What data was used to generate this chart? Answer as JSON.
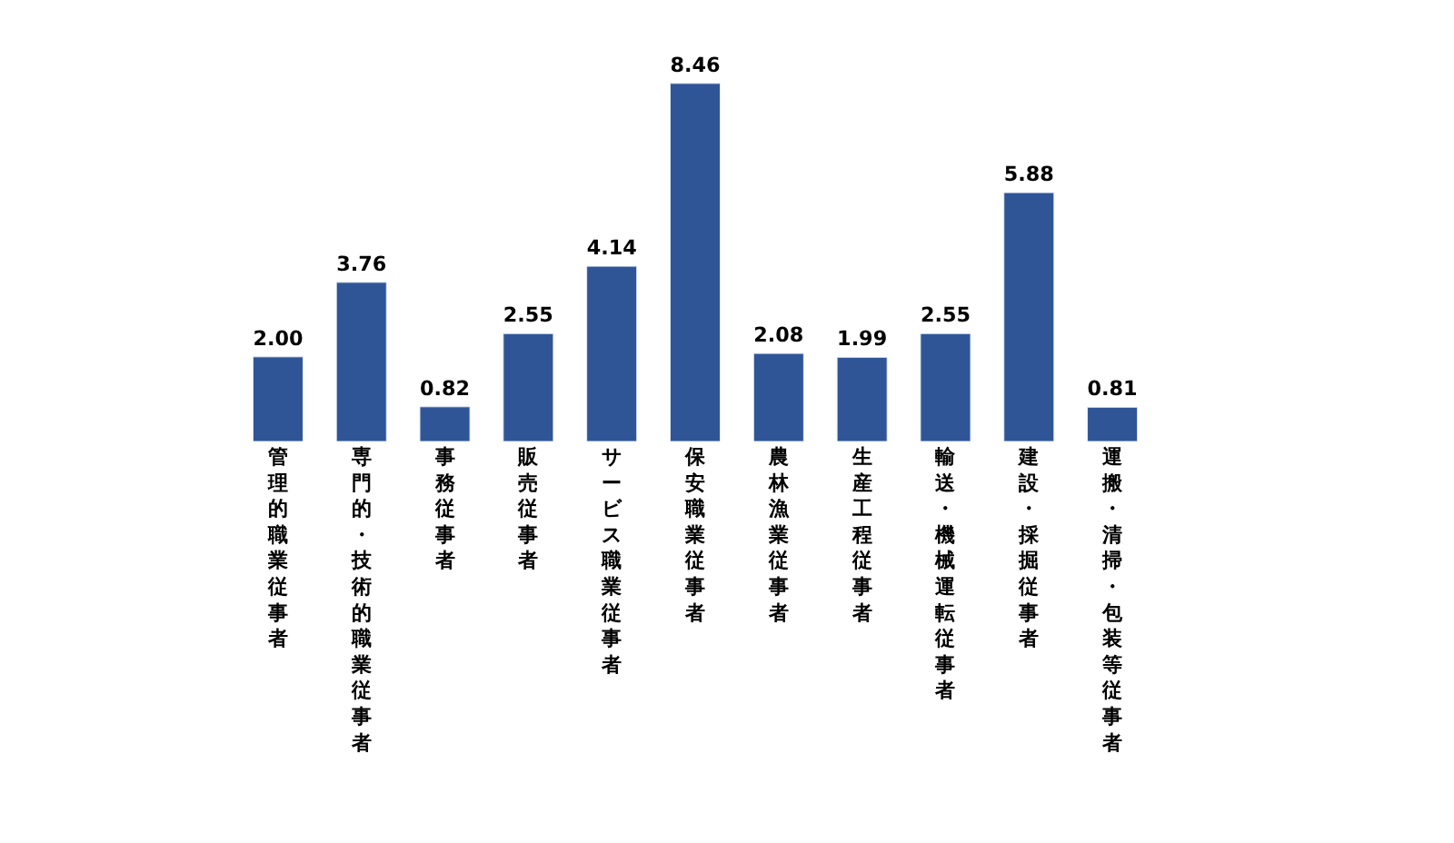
{
  "chart_data": {
    "type": "bar",
    "categories": [
      "管理的職業従事者",
      "専門的・技術的職業従事者",
      "事務従事者",
      "販売従事者",
      "サービス職業従事者",
      "保安職業従事者",
      "農林漁業従事者",
      "生産工程従事者",
      "輸送・機械運転従事者",
      "建設・採掘従事者",
      "運搬・清掃・包装等従事者"
    ],
    "values": [
      2.0,
      3.76,
      0.82,
      2.55,
      4.14,
      8.46,
      2.08,
      1.99,
      2.55,
      5.88,
      0.81
    ],
    "value_labels": [
      "2.00",
      "3.76",
      "0.82",
      "2.55",
      "4.14",
      "8.46",
      "2.08",
      "1.99",
      "2.55",
      "5.88",
      "0.81"
    ],
    "color": "#2f5597",
    "legend": false
  }
}
